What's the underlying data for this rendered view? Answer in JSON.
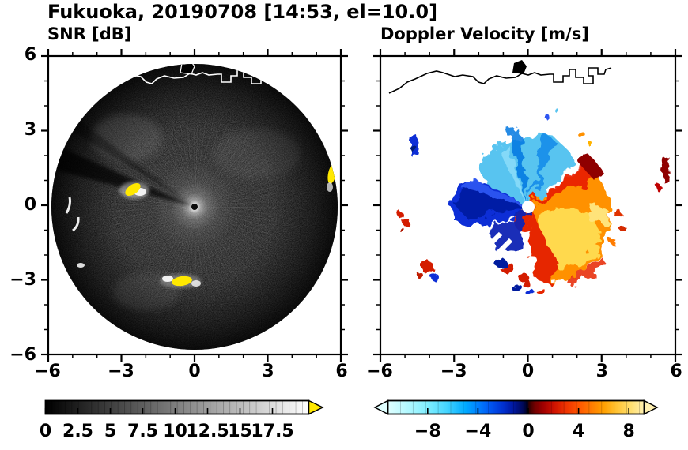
{
  "figure": {
    "title": "Fukuoka, 20190708 [14:53, el=10.0]",
    "station": "Fukuoka",
    "date": "20190708",
    "time": "14:53",
    "elevation": "el=10.0"
  },
  "panels": {
    "snr": {
      "title": "SNR [dB]",
      "xtick_labels": [
        "−6",
        "−3",
        "0",
        "3",
        "6"
      ],
      "ytick_labels": [
        "6",
        "3",
        "0",
        "−3",
        "−6"
      ],
      "colorbar_tick_labels": [
        "0",
        "2.5",
        "5",
        "7.5",
        "10",
        "12.5",
        "15",
        "17.5"
      ]
    },
    "velocity": {
      "title": "Doppler Velocity [m/s]",
      "xtick_labels": [
        "−6",
        "−3",
        "0",
        "3",
        "6"
      ],
      "colorbar_tick_labels": [
        "−8",
        "−4",
        "0",
        "4",
        "8"
      ]
    }
  },
  "chart_data": [
    {
      "type": "heatmap",
      "subtype": "radar_ppi_scan",
      "panel": "left",
      "title": "SNR [dB]",
      "xlim": [
        -6,
        6
      ],
      "ylim": [
        -6,
        6
      ],
      "xticks": [
        -6,
        -3,
        0,
        3,
        6
      ],
      "yticks": [
        -6,
        -3,
        0,
        3,
        6
      ],
      "scan_disk_radius": 5.8,
      "background": "black circular scan disk filled with grayscale receiver-noise speckle, bright white glow at the radar origin, brightness fading with range, faint radial ray streaks",
      "blocked_beam_sector_deg": [
        156,
        165
      ],
      "strong_echoes_xy": [
        [
          -2.6,
          0.7
        ],
        [
          -0.6,
          -3.0
        ],
        [
          5.6,
          1.3
        ]
      ],
      "edge_clutter_xy": [
        [
          -5.2,
          -0.3
        ],
        [
          -5.0,
          -1.0
        ],
        [
          -4.6,
          -2.4
        ]
      ],
      "coastline": "Hakata Bay shoreline with blocky port/island outlines drawn in white across the northern part of the disk",
      "colorbar": {
        "ticks": [
          0,
          2.5,
          5,
          7.5,
          10,
          12.5,
          15,
          17.5
        ],
        "range_shown": [
          0,
          20.3
        ],
        "colormap": "grayscale black to white",
        "over_arrow_color": "#ffe800",
        "stops": [
          [
            0,
            "#000000"
          ],
          [
            20.3,
            "#ffffff"
          ]
        ]
      }
    },
    {
      "type": "heatmap",
      "subtype": "radar_ppi_scan",
      "panel": "right",
      "title": "Doppler Velocity [m/s]",
      "xlim": [
        -6,
        6
      ],
      "ylim": [
        -6,
        6
      ],
      "xticks": [
        -6,
        -3,
        0,
        3,
        6
      ],
      "yticks": [
        -6,
        -3,
        0,
        3,
        6
      ],
      "pattern": {
        "negative_velocities": "cyan to dark blue fan north through west of the radar (motion toward radar), strongest dark blue due west, extent ~3 units",
        "positive_velocities": "yellow/orange/red fan east through south of the radar (motion away), yellow core ~1-3 east-southeast with red fringes and dark-red outer edge, extent ~3.3 units",
        "near_zero": "dark navy-to-black boundary running southwest from the center",
        "data_gap": "white double slash southwest of center",
        "isolated_echoes_xy": [
          [
            -4.7,
            2.6
          ],
          [
            -5.1,
            -0.6
          ],
          [
            -4.1,
            -2.6
          ],
          [
            5.5,
            1.6
          ]
        ],
        "origin": "white dot at the radar location",
        "coastline": "same shoreline drawn as a thin black line on the white background"
      },
      "colorbar": {
        "ticks": [
          -8,
          -4,
          0,
          4,
          8
        ],
        "range_shown": [
          -11.2,
          9.2
        ],
        "colormap": "pale cyan → blue → navy/black near zero → dark red → red → orange → yellow → pale yellow",
        "under_arrow_color": "#e0ffff",
        "over_arrow_color": "#fff0b0",
        "stops": [
          [
            -11.2,
            "#e0ffff"
          ],
          [
            -9.5,
            "#b0f8ff"
          ],
          [
            -8,
            "#7feeff"
          ],
          [
            -6.5,
            "#45d5ff"
          ],
          [
            -5,
            "#00aaff"
          ],
          [
            -4,
            "#0080ff"
          ],
          [
            -3,
            "#0055f0"
          ],
          [
            -2,
            "#0030d0"
          ],
          [
            -1.2,
            "#0018a0"
          ],
          [
            -0.5,
            "#000a60"
          ],
          [
            -0.05,
            "#000020"
          ],
          [
            0.05,
            "#300000"
          ],
          [
            0.5,
            "#700000"
          ],
          [
            1.2,
            "#a00000"
          ],
          [
            2,
            "#cc1000"
          ],
          [
            3,
            "#ee3300"
          ],
          [
            4,
            "#ff5500"
          ],
          [
            5,
            "#ff7b00"
          ],
          [
            6,
            "#ffa000"
          ],
          [
            7,
            "#ffc233"
          ],
          [
            8,
            "#ffdb66"
          ],
          [
            9.2,
            "#fff0b0"
          ]
        ]
      }
    }
  ],
  "colors": {
    "frame": "#000000",
    "background": "#ffffff",
    "snr_strong_echo": "#ffe800",
    "velocity_negative_peak": "#0b2fd6",
    "velocity_positive_core": "#ffd94d"
  }
}
